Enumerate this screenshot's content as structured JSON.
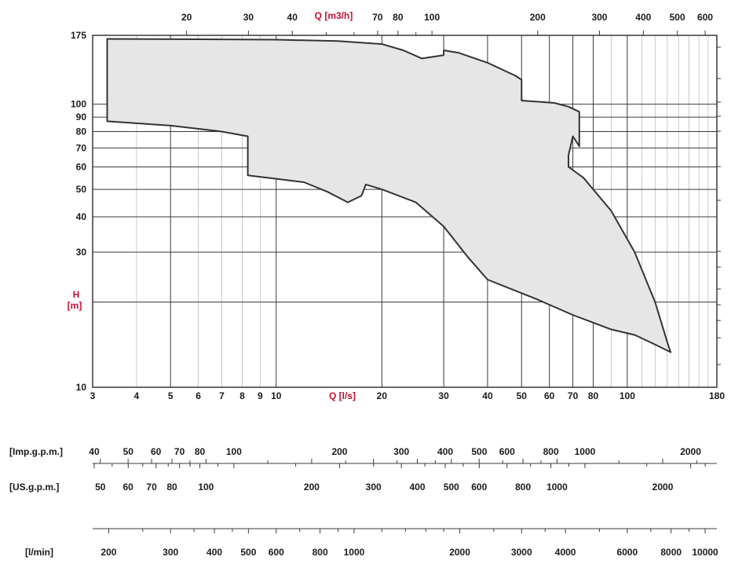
{
  "chart_data": {
    "type": "area",
    "title": "",
    "xlabel": "Q [l/s]",
    "x2label": "Q [m3/h]",
    "ylabel_line1": "H",
    "ylabel_line2": "[m]",
    "x_scale": "log",
    "y_scale": "log",
    "xlim": [
      3,
      180
    ],
    "ylim": [
      10,
      175
    ],
    "grid": true,
    "colors": {
      "fill": "#e6e6e6",
      "stroke": "#333333",
      "grid_major": "#3a3a3a",
      "grid_minor": "#bdbdbd",
      "accent": "#c8102e"
    },
    "x_ticks": [
      {
        "v": 3,
        "label": "3"
      },
      {
        "v": 4,
        "label": "4"
      },
      {
        "v": 5,
        "label": "5"
      },
      {
        "v": 6,
        "label": "6"
      },
      {
        "v": 7,
        "label": "7"
      },
      {
        "v": 8,
        "label": "8"
      },
      {
        "v": 9,
        "label": "9"
      },
      {
        "v": 10,
        "label": "10"
      },
      {
        "v": 20,
        "label": "20"
      },
      {
        "v": 30,
        "label": "30"
      },
      {
        "v": 40,
        "label": "40"
      },
      {
        "v": 50,
        "label": "50"
      },
      {
        "v": 60,
        "label": "60"
      },
      {
        "v": 70,
        "label": "70"
      },
      {
        "v": 80,
        "label": "80"
      },
      {
        "v": 100,
        "label": "100"
      },
      {
        "v": 180,
        "label": "180"
      }
    ],
    "x_minor": [
      90,
      110,
      120,
      130,
      140,
      150,
      160,
      170
    ],
    "x2_ticks": [
      {
        "v": 20,
        "label": "20"
      },
      {
        "v": 30,
        "label": "30"
      },
      {
        "v": 40,
        "label": "40"
      },
      {
        "v": 70,
        "label": "70"
      },
      {
        "v": 80,
        "label": "80"
      },
      {
        "v": 100,
        "label": "100"
      },
      {
        "v": 200,
        "label": "200"
      },
      {
        "v": 300,
        "label": "300"
      },
      {
        "v": 400,
        "label": "400"
      },
      {
        "v": 500,
        "label": "500"
      },
      {
        "v": 600,
        "label": "600"
      }
    ],
    "x2_minor": [
      50,
      60,
      90
    ],
    "y_ticks": [
      {
        "v": 10,
        "label": "10"
      },
      {
        "v": 30,
        "label": "30"
      },
      {
        "v": 40,
        "label": "40"
      },
      {
        "v": 50,
        "label": "50"
      },
      {
        "v": 60,
        "label": "60"
      },
      {
        "v": 70,
        "label": "70"
      },
      {
        "v": 80,
        "label": "80"
      },
      {
        "v": 90,
        "label": "90"
      },
      {
        "v": 100,
        "label": "100"
      },
      {
        "v": 175,
        "label": "175"
      }
    ],
    "y_gridlines": [
      20,
      30,
      40,
      50,
      60,
      70,
      80,
      90,
      100
    ],
    "envelope": [
      [
        3.3,
        170
      ],
      [
        10,
        169
      ],
      [
        15,
        167
      ],
      [
        20,
        163
      ],
      [
        23,
        155
      ],
      [
        26,
        145
      ],
      [
        30,
        149
      ],
      [
        30,
        155
      ],
      [
        33,
        152
      ],
      [
        40,
        140
      ],
      [
        48,
        126
      ],
      [
        50,
        122
      ],
      [
        50,
        103
      ],
      [
        62,
        101
      ],
      [
        68,
        98
      ],
      [
        73,
        94
      ],
      [
        73,
        71
      ],
      [
        70,
        77
      ],
      [
        68,
        66
      ],
      [
        68,
        60
      ],
      [
        75,
        55
      ],
      [
        90,
        42
      ],
      [
        105,
        30
      ],
      [
        120,
        20
      ],
      [
        131,
        14
      ],
      [
        133,
        13.3
      ],
      [
        118,
        14.3
      ],
      [
        105,
        15.3
      ],
      [
        90,
        16
      ],
      [
        70,
        18
      ],
      [
        55,
        20.5
      ],
      [
        40,
        24
      ],
      [
        35,
        29
      ],
      [
        30,
        37
      ],
      [
        25,
        45
      ],
      [
        20,
        50
      ],
      [
        18,
        52
      ],
      [
        17.5,
        47.5
      ],
      [
        16,
        45
      ],
      [
        14,
        49
      ],
      [
        12,
        53
      ],
      [
        10,
        54.5
      ],
      [
        8.3,
        56
      ],
      [
        8.3,
        77
      ],
      [
        7,
        80
      ],
      [
        5,
        84
      ],
      [
        3.3,
        87
      ],
      [
        3.3,
        170
      ]
    ]
  },
  "scales": {
    "imp": {
      "label": "[Imp.g.p.m.]",
      "ticks": [
        {
          "v": 40,
          "label": "40"
        },
        {
          "v": 50,
          "label": "50"
        },
        {
          "v": 60,
          "label": "60"
        },
        {
          "v": 70,
          "label": "70"
        },
        {
          "v": 80,
          "label": "80"
        },
        {
          "v": 100,
          "label": "100"
        },
        {
          "v": 200,
          "label": "200"
        },
        {
          "v": 300,
          "label": "300"
        },
        {
          "v": 400,
          "label": "400"
        },
        {
          "v": 500,
          "label": "500"
        },
        {
          "v": 600,
          "label": "600"
        },
        {
          "v": 800,
          "label": "800"
        },
        {
          "v": 1000,
          "label": "1000"
        },
        {
          "v": 2000,
          "label": "2000"
        }
      ],
      "minor": [
        45,
        55,
        65,
        75,
        90,
        150,
        250,
        350,
        450,
        700,
        900,
        1500,
        2200
      ]
    },
    "us": {
      "label": "[US.g.p.m.]",
      "ticks": [
        {
          "v": 50,
          "label": "50"
        },
        {
          "v": 60,
          "label": "60"
        },
        {
          "v": 70,
          "label": "70"
        },
        {
          "v": 80,
          "label": "80"
        },
        {
          "v": 100,
          "label": "100"
        },
        {
          "v": 200,
          "label": "200"
        },
        {
          "v": 300,
          "label": "300"
        },
        {
          "v": 400,
          "label": "400"
        },
        {
          "v": 500,
          "label": "500"
        },
        {
          "v": 600,
          "label": "600"
        },
        {
          "v": 800,
          "label": "800"
        },
        {
          "v": 1000,
          "label": "1000"
        },
        {
          "v": 2000,
          "label": "2000"
        }
      ],
      "minor": [
        90,
        150,
        250,
        350,
        450,
        700,
        900,
        1500,
        2500
      ]
    },
    "lmin": {
      "label": "[l/min]",
      "ticks": [
        {
          "v": 200,
          "label": "200"
        },
        {
          "v": 300,
          "label": "300"
        },
        {
          "v": 400,
          "label": "400"
        },
        {
          "v": 500,
          "label": "500"
        },
        {
          "v": 600,
          "label": "600"
        },
        {
          "v": 800,
          "label": "800"
        },
        {
          "v": 1000,
          "label": "1000"
        },
        {
          "v": 2000,
          "label": "2000"
        },
        {
          "v": 3000,
          "label": "3000"
        },
        {
          "v": 4000,
          "label": "4000"
        },
        {
          "v": 6000,
          "label": "6000"
        },
        {
          "v": 8000,
          "label": "8000"
        },
        {
          "v": 10000,
          "label": "10000"
        }
      ],
      "minor": [
        250,
        350,
        450,
        700,
        900,
        1200,
        1400,
        1600,
        1800,
        2500,
        3500,
        5000,
        7000,
        9000
      ]
    }
  }
}
